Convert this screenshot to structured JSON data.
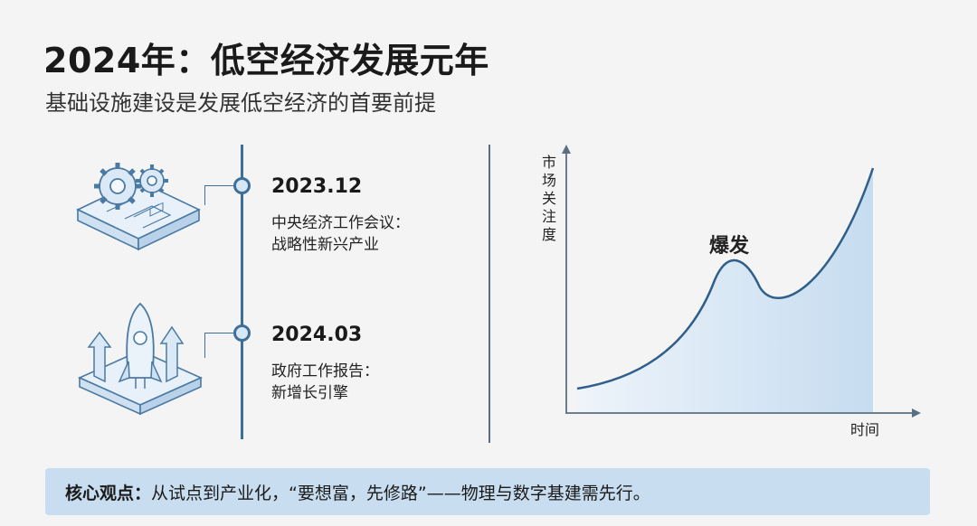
{
  "header": {
    "title": "2024年：低空经济发展元年",
    "subtitle": "基础设施建设是发展低空经济的首要前提"
  },
  "timeline": {
    "events": [
      {
        "date": "2023.12",
        "lines": [
          "中央经济工作会议：",
          "战略性新兴产业"
        ],
        "icon": "gears-blueprint-icon"
      },
      {
        "date": "2024.03",
        "lines": [
          "政府工作报告：",
          "新增长引擎"
        ],
        "icon": "rocket-arrows-icon"
      }
    ]
  },
  "chart_data": {
    "type": "area",
    "ylabel": "市场关注度",
    "xlabel": "时间",
    "annotations": [
      "爆发"
    ],
    "curve": "rises gradually, peaks, dips, then climbs steeply",
    "ticks": false,
    "grid": false
  },
  "footer": {
    "label": "核心观点：",
    "text": "从试点到产业化，“要想富，先修路”——物理与数字基建需先行。"
  },
  "colors": {
    "accent": "#3d6f99",
    "area_fill": "#cfe1f2",
    "bottom_bar": "#c8ddef",
    "background": "#f4f4f4"
  }
}
